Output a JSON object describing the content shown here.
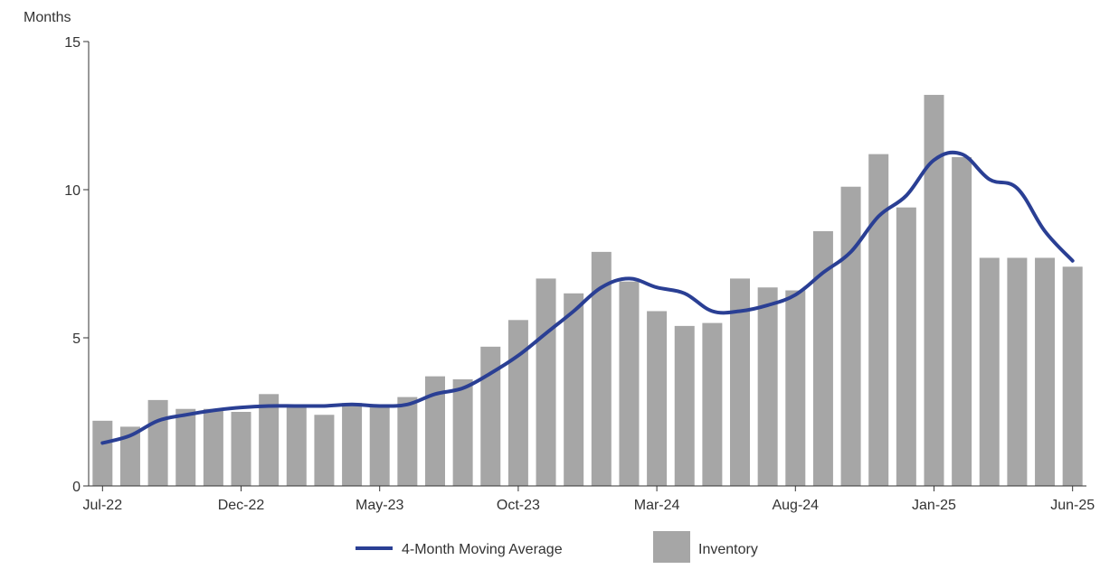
{
  "chart_data": {
    "type": "bar",
    "ylabel": "Months",
    "ylim": [
      0,
      15
    ],
    "yticks": [
      0,
      5,
      10,
      15
    ],
    "categories": [
      "Jul-22",
      "Aug-22",
      "Sep-22",
      "Oct-22",
      "Nov-22",
      "Dec-22",
      "Jan-23",
      "Feb-23",
      "Mar-23",
      "Apr-23",
      "May-23",
      "Jun-23",
      "Jul-23",
      "Aug-23",
      "Sep-23",
      "Oct-23",
      "Nov-23",
      "Dec-23",
      "Jan-24",
      "Feb-24",
      "Mar-24",
      "Apr-24",
      "May-24",
      "Jun-24",
      "Jul-24",
      "Aug-24",
      "Sep-24",
      "Oct-24",
      "Nov-24",
      "Dec-24",
      "Jan-25",
      "Feb-25",
      "Mar-25",
      "Apr-25",
      "May-25",
      "Jun-25"
    ],
    "xtick_labels": [
      "Jul-22",
      "Dec-22",
      "May-23",
      "Oct-23",
      "Mar-24",
      "Aug-24",
      "Jan-25",
      "Jun-25"
    ],
    "xtick_indices": [
      0,
      5,
      10,
      15,
      20,
      25,
      30,
      35
    ],
    "series": [
      {
        "name": "Inventory",
        "type": "bar",
        "color": "#a6a6a6",
        "values": [
          2.2,
          2.0,
          2.9,
          2.6,
          2.6,
          2.5,
          3.1,
          2.7,
          2.4,
          2.8,
          2.7,
          3.0,
          3.7,
          3.6,
          4.7,
          5.6,
          7.0,
          6.5,
          7.9,
          6.9,
          5.9,
          5.4,
          5.5,
          7.0,
          6.7,
          6.6,
          8.6,
          10.1,
          11.2,
          9.4,
          13.2,
          11.1,
          7.7,
          7.7,
          7.7,
          7.4
        ]
      },
      {
        "name": "4-Month Moving Average",
        "type": "line",
        "color": "#2a3f94",
        "values": [
          1.45,
          1.7,
          2.2,
          2.4,
          2.55,
          2.65,
          2.7,
          2.7,
          2.7,
          2.75,
          2.7,
          2.75,
          3.1,
          3.3,
          3.8,
          4.4,
          5.15,
          5.9,
          6.7,
          7.0,
          6.7,
          6.5,
          5.9,
          5.9,
          6.1,
          6.45,
          7.2,
          7.9,
          9.1,
          9.8,
          11.0,
          11.2,
          10.35,
          10.05,
          8.6,
          7.6
        ]
      }
    ],
    "legend": {
      "position": "bottom",
      "items": [
        {
          "label": "4-Month Moving Average",
          "color": "#2a3f94",
          "kind": "line"
        },
        {
          "label": "Inventory",
          "color": "#a6a6a6",
          "kind": "box"
        }
      ]
    },
    "grid": false
  }
}
